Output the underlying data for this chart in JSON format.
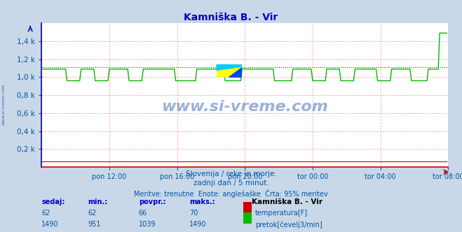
{
  "title": "Kamniška B. - Vir",
  "title_color": "#0000cc",
  "bg_color": "#c8d8e8",
  "plot_bg_color": "#ffffff",
  "grid_color": "#ffaaaa",
  "axis_left_color": "#0000cc",
  "axis_bottom_color": "#cc0000",
  "text_color": "#0055aa",
  "watermark": "www.si-vreme.com",
  "subtitle1": "Slovenija / reke in morje.",
  "subtitle2": "zadnji dan / 5 minut.",
  "subtitle3": "Meritve: trenutne  Enote: anglešaške  Črta: 95% meritev",
  "xlabel_ticks": [
    "pon 12:00",
    "pon 16:00",
    "pon 20:00",
    "tor 00:00",
    "tor 04:00",
    "tor 08:00"
  ],
  "ylabel_ticks": [
    "0,2 k",
    "0,4 k",
    "0,6 k",
    "0,8 k",
    "1,0 k",
    "1,2 k",
    "1,4 k"
  ],
  "ylabel_values": [
    200,
    400,
    600,
    800,
    1000,
    1200,
    1400
  ],
  "ymin": 0,
  "ymax": 1600,
  "xmin": 0,
  "xmax": 288,
  "percentile95_flow": 1110,
  "flow_color": "#00bb00",
  "temp_color": "#cc0000",
  "legend_title": "Kamniška B. - Vir",
  "legend_temp": "temperatura[F]",
  "legend_flow": "pretok[čevelj3/min]",
  "table_headers": [
    "sedaj:",
    "min.:",
    "povpr.:",
    "maks.:"
  ],
  "table_temp": [
    62,
    62,
    66,
    70
  ],
  "table_flow": [
    1490,
    951,
    1039,
    1490
  ],
  "logo_yellow": "#ffff00",
  "logo_cyan": "#00ccff",
  "logo_blue": "#0044ff"
}
